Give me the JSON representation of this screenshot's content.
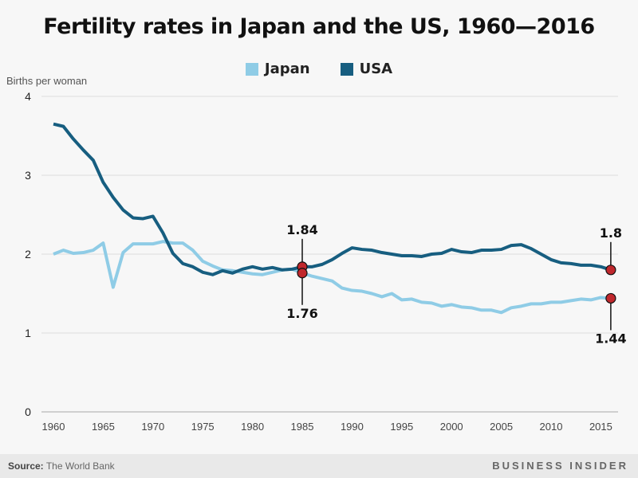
{
  "chart_data": {
    "type": "line",
    "title": "Fertility rates in Japan and the US, 1960—2016",
    "ylabel": "Births per woman",
    "xlabel": "",
    "ylim": [
      0,
      4
    ],
    "xlim": [
      1960,
      2016
    ],
    "yticks": [
      "0",
      "1",
      "2",
      "3",
      "4"
    ],
    "xticks": [
      "1960",
      "1965",
      "1970",
      "1975",
      "1980",
      "1985",
      "1990",
      "1995",
      "2000",
      "2005",
      "2010",
      "2015"
    ],
    "grid": true,
    "legend": "top-center",
    "x_start": 1960,
    "series": [
      {
        "name": "Japan",
        "color": "#8fcce6",
        "values": [
          2.0,
          2.05,
          2.01,
          2.02,
          2.05,
          2.14,
          1.58,
          2.02,
          2.13,
          2.13,
          2.13,
          2.16,
          2.14,
          2.14,
          2.05,
          1.91,
          1.85,
          1.8,
          1.79,
          1.77,
          1.75,
          1.74,
          1.77,
          1.8,
          1.81,
          1.76,
          1.72,
          1.69,
          1.66,
          1.57,
          1.54,
          1.53,
          1.5,
          1.46,
          1.5,
          1.42,
          1.43,
          1.39,
          1.38,
          1.34,
          1.36,
          1.33,
          1.32,
          1.29,
          1.29,
          1.26,
          1.32,
          1.34,
          1.37,
          1.37,
          1.39,
          1.39,
          1.41,
          1.43,
          1.42,
          1.45,
          1.44
        ]
      },
      {
        "name": "USA",
        "color": "#175e80",
        "values": [
          3.65,
          3.62,
          3.46,
          3.32,
          3.19,
          2.91,
          2.72,
          2.56,
          2.46,
          2.45,
          2.48,
          2.27,
          2.01,
          1.88,
          1.84,
          1.77,
          1.74,
          1.79,
          1.76,
          1.81,
          1.84,
          1.81,
          1.83,
          1.8,
          1.81,
          1.84,
          1.84,
          1.87,
          1.93,
          2.01,
          2.08,
          2.06,
          2.05,
          2.02,
          2.0,
          1.98,
          1.98,
          1.97,
          2.0,
          2.01,
          2.06,
          2.03,
          2.02,
          2.05,
          2.05,
          2.06,
          2.11,
          2.12,
          2.07,
          2.0,
          1.93,
          1.89,
          1.88,
          1.86,
          1.86,
          1.84,
          1.8
        ]
      }
    ],
    "annotations": [
      {
        "year": 1985,
        "value": 1.84,
        "label": "1.84",
        "position": "above"
      },
      {
        "year": 1985,
        "value": 1.76,
        "label": "1.76",
        "position": "below"
      },
      {
        "year": 2016,
        "value": 1.8,
        "label": "1.8",
        "position": "above"
      },
      {
        "year": 2016,
        "value": 1.44,
        "label": "1.44",
        "position": "below"
      }
    ],
    "marker_color": "#c0282d"
  },
  "footer": {
    "source_label": "Source:",
    "source_text": "The World Bank",
    "brand": "BUSINESS INSIDER"
  }
}
